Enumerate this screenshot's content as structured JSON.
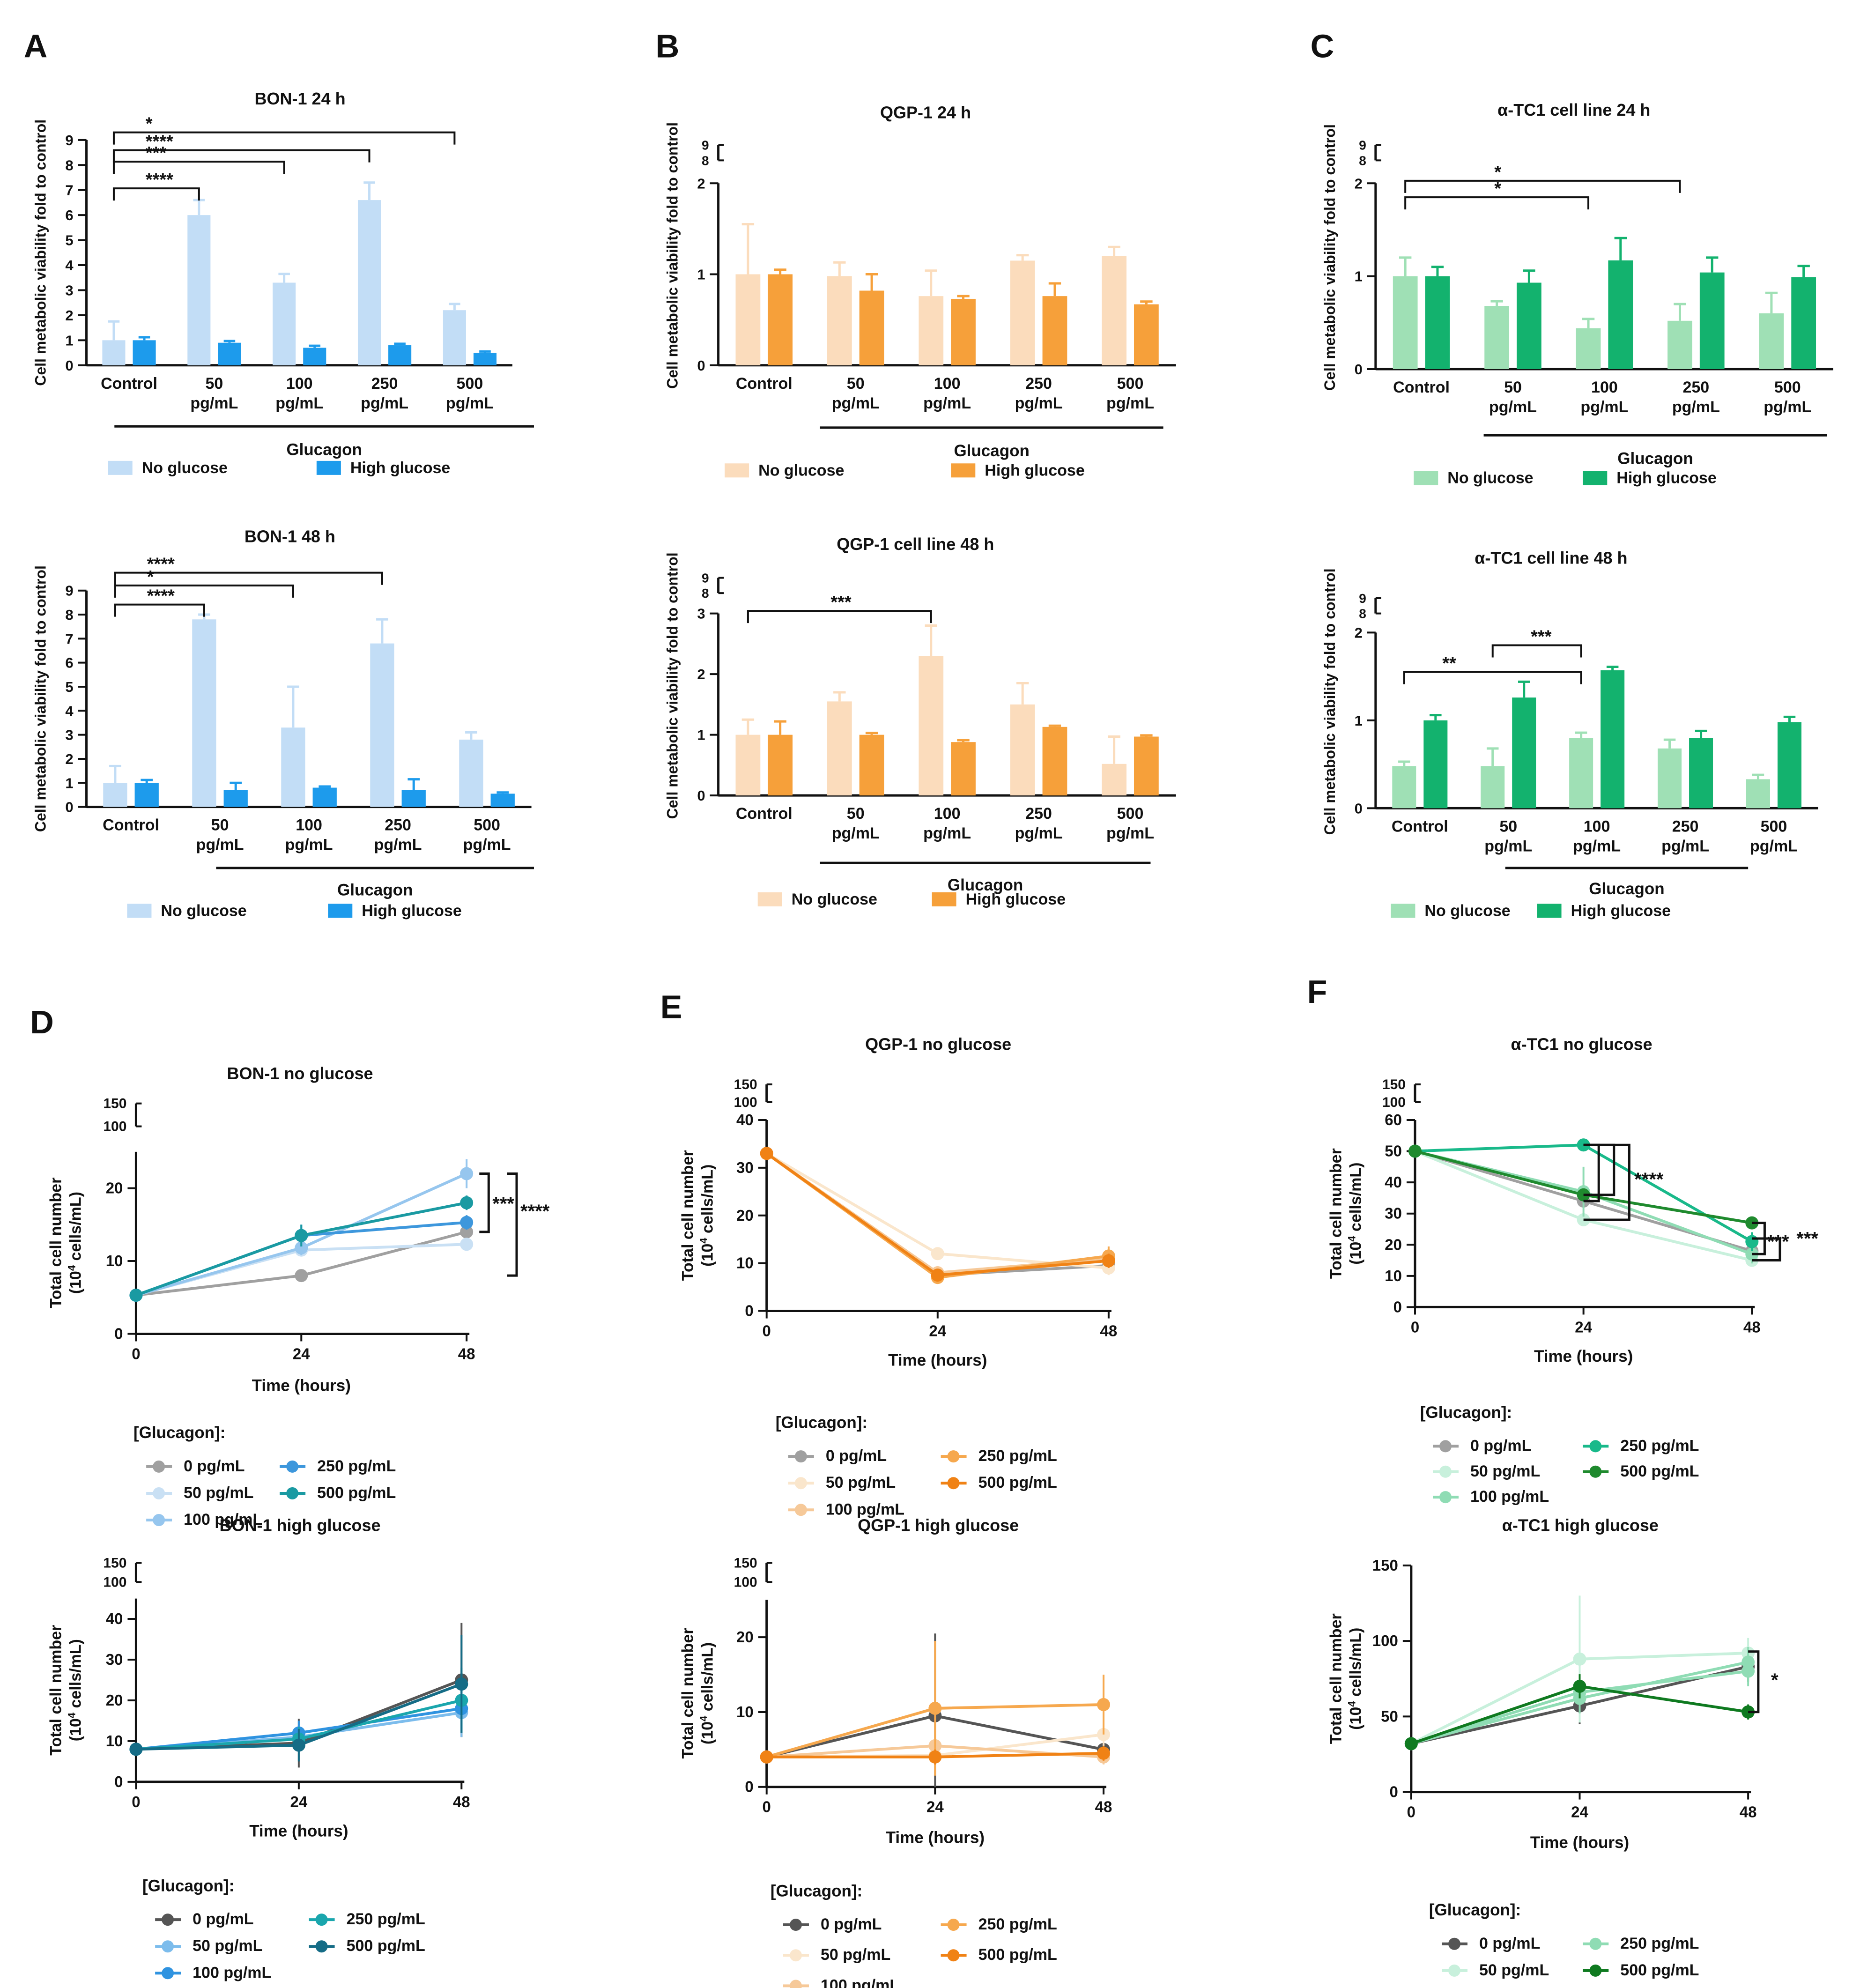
{
  "figure": {
    "panel_letters": [
      "A",
      "B",
      "C",
      "D",
      "E",
      "F"
    ],
    "bar_ylabel": "Cell metabolic viability fold to control",
    "line_ylabel": "Total cell number",
    "line_ylabel_unit": "(10",
    "line_ylabel_exp": "4",
    "line_ylabel_unit_rest": " cells/mL)",
    "categories": [
      "Control",
      "50 pg/mL",
      "100 pg/mL",
      "250 pg/mL",
      "500 pg/mL"
    ],
    "group_label": "Glucagon",
    "xlabel_time": "Time (hours)",
    "legend_title": "[Glucagon]:",
    "glucose_legend": [
      "No glucose",
      "High glucose"
    ],
    "dose_legend": [
      "0 pg/mL",
      "50 pg/mL",
      "100 pg/mL",
      "250 pg/mL",
      "500 pg/mL"
    ]
  },
  "colors": {
    "blue": [
      "#c2ddf6",
      "#1d9bec"
    ],
    "orange": [
      "#fbdcbc",
      "#f6a03a"
    ],
    "green": [
      "#9fe0b5",
      "#13b26e"
    ],
    "line_blue": [
      "#a0a0a0",
      "#c9e0f4",
      "#96c6ee",
      "#3d97dc",
      "#1a9aa2"
    ],
    "line_blue_hi": [
      "#555555",
      "#7cbcec",
      "#2f93e0",
      "#1aa6ad",
      "#156c86"
    ],
    "line_orange": [
      "#a0a0a0",
      "#fae6cc",
      "#f6c999",
      "#f6a84e",
      "#f08215"
    ],
    "line_orange_hi": [
      "#555555",
      "#fae6cc",
      "#f6c999",
      "#f6a84e",
      "#f08215"
    ],
    "line_green": [
      "#a0a0a0",
      "#c8f0dc",
      "#8fdcb4",
      "#19b98a",
      "#1f8a2e"
    ],
    "line_green_hi": [
      "#555555",
      "#c8f0dc",
      "#8fdcb4",
      "#8fdcb4",
      "#0f7a20"
    ]
  },
  "chart_data": [
    {
      "id": "A1",
      "type": "bar",
      "title": "BON-1 24 h",
      "ylim": [
        0,
        9
      ],
      "ticks": [
        "0",
        "1",
        "2",
        "3",
        "4",
        "5",
        "6",
        "7",
        "8",
        "9"
      ],
      "series": [
        {
          "name": "No glucose",
          "values": [
            1.0,
            6.0,
            3.3,
            6.6,
            2.2
          ],
          "err": [
            0.75,
            0.6,
            0.35,
            0.7,
            0.25
          ]
        },
        {
          "name": "High glucose",
          "values": [
            1.0,
            0.9,
            0.7,
            0.8,
            0.5
          ],
          "err": [
            0.12,
            0.07,
            0.08,
            0.06,
            0.05
          ]
        }
      ],
      "annotations": [
        {
          "to": 1,
          "label": "****"
        },
        {
          "to": 2,
          "label": "***"
        },
        {
          "to": 3,
          "label": "****"
        },
        {
          "to": 4,
          "label": "*"
        }
      ]
    },
    {
      "id": "A2",
      "type": "bar",
      "title": "BON-1 48 h",
      "ylim": [
        0,
        9
      ],
      "ticks": [
        "0",
        "1",
        "2",
        "3",
        "4",
        "5",
        "6",
        "7",
        "8",
        "9"
      ],
      "series": [
        {
          "name": "No glucose",
          "values": [
            1.0,
            7.8,
            3.3,
            6.8,
            2.8
          ],
          "err": [
            0.7,
            0.2,
            1.7,
            1.0,
            0.3
          ]
        },
        {
          "name": "High glucose",
          "values": [
            1.0,
            0.7,
            0.8,
            0.7,
            0.55
          ],
          "err": [
            0.12,
            0.3,
            0.05,
            0.45,
            0.05
          ]
        }
      ],
      "annotations": [
        {
          "to": 1,
          "label": "****"
        },
        {
          "to": 2,
          "label": "*"
        },
        {
          "to": 3,
          "label": "****"
        }
      ]
    },
    {
      "id": "B1",
      "type": "bar",
      "title": "QGP-1 24 h",
      "ylim": [
        0,
        2
      ],
      "break_ticks": [
        "8",
        "9"
      ],
      "ticks": [
        "0",
        "1",
        "2"
      ],
      "series": [
        {
          "name": "No glucose",
          "values": [
            1.0,
            0.98,
            0.76,
            1.15,
            1.2
          ],
          "err": [
            0.55,
            0.15,
            0.28,
            0.06,
            0.1
          ]
        },
        {
          "name": "High glucose",
          "values": [
            1.0,
            0.82,
            0.73,
            0.76,
            0.67
          ],
          "err": [
            0.05,
            0.18,
            0.03,
            0.14,
            0.03
          ]
        }
      ],
      "annotations": []
    },
    {
      "id": "B2",
      "type": "bar",
      "title": "QGP-1 cell line 48 h",
      "ylim": [
        0,
        3
      ],
      "break_ticks": [
        "8",
        "9"
      ],
      "ticks": [
        "0",
        "1",
        "2",
        "3"
      ],
      "series": [
        {
          "name": "No glucose",
          "values": [
            1.0,
            1.55,
            2.3,
            1.5,
            0.52
          ],
          "err": [
            0.25,
            0.15,
            0.5,
            0.35,
            0.45
          ]
        },
        {
          "name": "High glucose",
          "values": [
            1.0,
            1.0,
            0.88,
            1.13,
            0.97
          ],
          "err": [
            0.22,
            0.03,
            0.03,
            0.02,
            0.02
          ]
        }
      ],
      "annotations": [
        {
          "to": 2,
          "label": "***"
        }
      ]
    },
    {
      "id": "C1",
      "type": "bar",
      "title": "α-TC1 cell line 24 h",
      "ylim": [
        0,
        2
      ],
      "break_ticks": [
        "8",
        "9"
      ],
      "ticks": [
        "0",
        "1",
        "2"
      ],
      "series": [
        {
          "name": "No glucose",
          "values": [
            1.0,
            0.68,
            0.44,
            0.52,
            0.6
          ],
          "err": [
            0.2,
            0.05,
            0.1,
            0.18,
            0.22
          ]
        },
        {
          "name": "High glucose",
          "values": [
            1.0,
            0.93,
            1.17,
            1.04,
            0.99
          ],
          "err": [
            0.1,
            0.13,
            0.24,
            0.16,
            0.12
          ]
        }
      ],
      "annotations": [
        {
          "to": 2,
          "label": "*"
        },
        {
          "to": 3,
          "label": "*"
        }
      ]
    },
    {
      "id": "C2",
      "type": "bar",
      "title": "α-TC1 cell line 48 h",
      "ylim": [
        0,
        2
      ],
      "break_ticks": [
        "8",
        "9"
      ],
      "ticks": [
        "0",
        "1",
        "2"
      ],
      "series": [
        {
          "name": "No glucose",
          "values": [
            0.48,
            0.48,
            0.8,
            0.68,
            0.33
          ],
          "err": [
            0.05,
            0.2,
            0.06,
            0.1,
            0.05
          ]
        },
        {
          "name": "High glucose",
          "values": [
            1.0,
            1.26,
            1.57,
            0.8,
            0.98
          ],
          "err": [
            0.06,
            0.18,
            0.04,
            0.08,
            0.06
          ]
        }
      ],
      "annotations": [
        {
          "from": 0,
          "to": 2,
          "label": "**"
        },
        {
          "from": 1,
          "to": 2,
          "label": "***"
        }
      ]
    },
    {
      "id": "D1",
      "type": "line",
      "title": "BON-1 no glucose",
      "x": [
        0,
        24,
        48
      ],
      "ylim": [
        0,
        25
      ],
      "ticks": [
        "0",
        "10",
        "20"
      ],
      "break_ticks": [
        "100",
        "150"
      ],
      "series": [
        {
          "name": "0 pg/mL",
          "values": [
            5.3,
            8.0,
            14.0
          ],
          "err": [
            0,
            0.3,
            0.5
          ]
        },
        {
          "name": "50 pg/mL",
          "values": [
            5.3,
            11.5,
            12.3
          ],
          "err": [
            0,
            0.8,
            0.8
          ]
        },
        {
          "name": "100 pg/mL",
          "values": [
            5.3,
            11.8,
            22.0
          ],
          "err": [
            0,
            1.0,
            2.0
          ]
        },
        {
          "name": "250 pg/mL",
          "values": [
            5.3,
            13.5,
            15.3
          ],
          "err": [
            0,
            1.5,
            1.0
          ]
        },
        {
          "name": "500 pg/mL",
          "values": [
            5.3,
            13.5,
            18.0
          ],
          "err": [
            0,
            1.5,
            1.0
          ]
        }
      ],
      "sig": [
        "***",
        "****"
      ]
    },
    {
      "id": "D2",
      "type": "line",
      "title": "BON-1 high glucose",
      "x": [
        0,
        24,
        48
      ],
      "ylim": [
        0,
        45
      ],
      "ticks": [
        "0",
        "10",
        "20",
        "30",
        "40"
      ],
      "break_ticks": [
        "100",
        "150"
      ],
      "series": [
        {
          "name": "0 pg/mL",
          "values": [
            8.0,
            9.5,
            25.0
          ],
          "err": [
            0,
            6.0,
            14.0
          ]
        },
        {
          "name": "50 pg/mL",
          "values": [
            8.0,
            11.0,
            17.0
          ],
          "err": [
            0,
            3.0,
            6.0
          ]
        },
        {
          "name": "100 pg/mL",
          "values": [
            8.0,
            12.0,
            18.0
          ],
          "err": [
            0,
            3.0,
            6.0
          ]
        },
        {
          "name": "250 pg/mL",
          "values": [
            8.0,
            10.5,
            20.0
          ],
          "err": [
            0,
            3.0,
            8.0
          ]
        },
        {
          "name": "500 pg/mL",
          "values": [
            8.0,
            9.0,
            24.0
          ],
          "err": [
            0,
            4.0,
            12.0
          ]
        }
      ],
      "sig": []
    },
    {
      "id": "E1",
      "type": "line",
      "title": "QGP-1 no glucose",
      "x": [
        0,
        24,
        48
      ],
      "ylim": [
        0,
        40
      ],
      "ticks": [
        "0",
        "10",
        "20",
        "30",
        "40"
      ],
      "break_ticks": [
        "100",
        "150"
      ],
      "series": [
        {
          "name": "0 pg/mL",
          "values": [
            33.0,
            7.5,
            9.5
          ],
          "err": [
            0,
            1.0,
            1.0
          ]
        },
        {
          "name": "50 pg/mL",
          "values": [
            33.0,
            12.0,
            9.0
          ],
          "err": [
            0,
            1.0,
            1.5
          ]
        },
        {
          "name": "100 pg/mL",
          "values": [
            33.0,
            8.0,
            11.0
          ],
          "err": [
            0,
            1.0,
            1.5
          ]
        },
        {
          "name": "250 pg/mL",
          "values": [
            33.0,
            7.0,
            11.5
          ],
          "err": [
            0,
            1.0,
            2.0
          ]
        },
        {
          "name": "500 pg/mL",
          "values": [
            33.0,
            7.5,
            10.5
          ],
          "err": [
            0,
            1.0,
            1.5
          ]
        }
      ],
      "sig": []
    },
    {
      "id": "E2",
      "type": "line",
      "title": "QGP-1 high glucose",
      "x": [
        0,
        24,
        48
      ],
      "ylim": [
        0,
        25
      ],
      "ticks": [
        "0",
        "10",
        "20"
      ],
      "break_ticks": [
        "100",
        "150"
      ],
      "series": [
        {
          "name": "0 pg/mL",
          "values": [
            4.0,
            9.5,
            5.0
          ],
          "err": [
            0,
            11.0,
            1.0
          ]
        },
        {
          "name": "50 pg/mL",
          "values": [
            4.0,
            4.2,
            7.0
          ],
          "err": [
            0,
            2.0,
            2.0
          ]
        },
        {
          "name": "100 pg/mL",
          "values": [
            4.0,
            5.5,
            4.0
          ],
          "err": [
            0,
            3.0,
            1.0
          ]
        },
        {
          "name": "250 pg/mL",
          "values": [
            4.0,
            10.5,
            11.0
          ],
          "err": [
            0,
            9.0,
            4.0
          ]
        },
        {
          "name": "500 pg/mL",
          "values": [
            4.0,
            4.0,
            4.5
          ],
          "err": [
            0,
            1.0,
            1.0
          ]
        }
      ],
      "sig": []
    },
    {
      "id": "F1",
      "type": "line",
      "title": "α-TC1 no glucose",
      "x": [
        0,
        24,
        48
      ],
      "ylim": [
        0,
        60
      ],
      "ticks": [
        "0",
        "10",
        "20",
        "30",
        "40",
        "50",
        "60"
      ],
      "break_ticks": [
        "100",
        "150"
      ],
      "series": [
        {
          "name": "0 pg/mL",
          "values": [
            50.0,
            34.0,
            18.0
          ],
          "err": [
            0,
            2.0,
            2.0
          ]
        },
        {
          "name": "50 pg/mL",
          "values": [
            50.0,
            28.0,
            15.0
          ],
          "err": [
            0,
            2.0,
            2.0
          ]
        },
        {
          "name": "100 pg/mL",
          "values": [
            50.0,
            37.0,
            17.0
          ],
          "err": [
            0,
            8.0,
            3.0
          ]
        },
        {
          "name": "250 pg/mL",
          "values": [
            50.0,
            52.0,
            21.0
          ],
          "err": [
            0,
            2.0,
            3.0
          ]
        },
        {
          "name": "500 pg/mL",
          "values": [
            50.0,
            36.0,
            27.0
          ],
          "err": [
            0,
            2.0,
            2.0
          ]
        }
      ],
      "sig": [
        "****",
        "***",
        "***"
      ]
    },
    {
      "id": "F2",
      "type": "line",
      "title": "α-TC1 high glucose",
      "x": [
        0,
        24,
        48
      ],
      "ylim": [
        0,
        150
      ],
      "ticks": [
        "0",
        "50",
        "100",
        "150"
      ],
      "series": [
        {
          "name": "0 pg/mL",
          "values": [
            32.0,
            57.0,
            83.0
          ],
          "err": [
            0,
            12.0,
            10.0
          ]
        },
        {
          "name": "50 pg/mL",
          "values": [
            32.0,
            88.0,
            92.0
          ],
          "err": [
            0,
            42.0,
            10.0
          ]
        },
        {
          "name": "100 pg/mL",
          "values": [
            32.0,
            62.0,
            86.0
          ],
          "err": [
            0,
            10.0,
            10.0
          ]
        },
        {
          "name": "250 pg/mL",
          "values": [
            32.0,
            66.0,
            80.0
          ],
          "err": [
            0,
            10.0,
            10.0
          ]
        },
        {
          "name": "500 pg/mL",
          "values": [
            32.0,
            70.0,
            53.0
          ],
          "err": [
            0,
            8.0,
            5.0
          ]
        }
      ],
      "sig": [
        "*"
      ]
    }
  ]
}
